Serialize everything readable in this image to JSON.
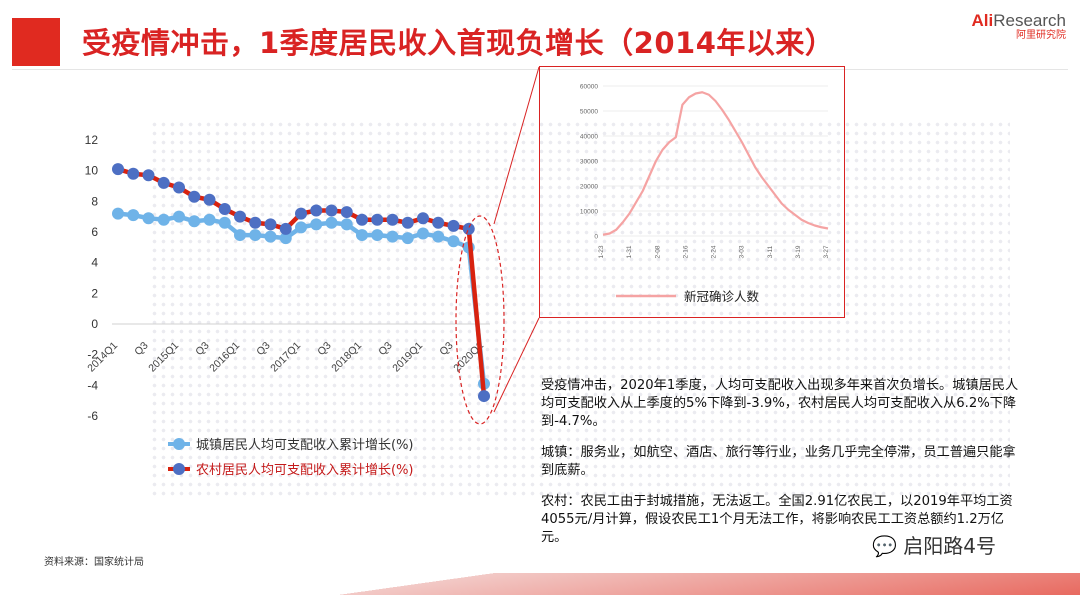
{
  "header": {
    "title": "受疫情冲击，1季度居民收入首现负增长（2014年以来）",
    "logo_main_1": "Ali",
    "logo_main_2": "Research",
    "logo_sub": "阿里研究院"
  },
  "colors": {
    "brand_red": "#e02a20",
    "urban": "#6fb3e8",
    "rural_line": "#d8220f",
    "rural_marker": "#4d6fc3",
    "covid": "#f5a3a3"
  },
  "chart_data": [
    {
      "type": "line",
      "x_tick_labels": [
        "2014Q1",
        "Q3",
        "2015Q1",
        "Q3",
        "2016Q1",
        "Q3",
        "2017Q1",
        "Q3",
        "2018Q1",
        "Q3",
        "2019Q1",
        "Q3",
        "2020Q1"
      ],
      "x": [
        "2014Q1",
        "2014Q2",
        "2014Q3",
        "2014Q4",
        "2015Q1",
        "2015Q2",
        "2015Q3",
        "2015Q4",
        "2016Q1",
        "2016Q2",
        "2016Q3",
        "2016Q4",
        "2017Q1",
        "2017Q2",
        "2017Q3",
        "2017Q4",
        "2018Q1",
        "2018Q2",
        "2018Q3",
        "2018Q4",
        "2019Q1",
        "2019Q2",
        "2019Q3",
        "2019Q4",
        "2020Q1"
      ],
      "y_ticks": [
        "12",
        "10",
        "8",
        "6",
        "4",
        "2",
        "0",
        "-2",
        "-4",
        "-6"
      ],
      "ylim": [
        -6,
        12
      ],
      "series": [
        {
          "name": "城镇居民人均可支配收入累计增长(%)",
          "values": [
            7.2,
            7.1,
            6.9,
            6.8,
            7.0,
            6.7,
            6.8,
            6.6,
            5.8,
            5.8,
            5.7,
            5.6,
            6.3,
            6.5,
            6.6,
            6.5,
            5.8,
            5.8,
            5.7,
            5.6,
            5.9,
            5.7,
            5.4,
            5.0,
            -3.9
          ]
        },
        {
          "name": "农村居民人均可支配收入累计增长(%)",
          "values": [
            10.1,
            9.8,
            9.7,
            9.2,
            8.9,
            8.3,
            8.1,
            7.5,
            7.0,
            6.6,
            6.5,
            6.2,
            7.2,
            7.4,
            7.4,
            7.3,
            6.8,
            6.8,
            6.8,
            6.6,
            6.9,
            6.6,
            6.4,
            6.2,
            -4.7
          ]
        }
      ],
      "grid": false,
      "legend": "bottom-left"
    },
    {
      "type": "line",
      "x_tick_labels": [
        "1-23",
        "1-31",
        "2-08",
        "2-16",
        "2-24",
        "3-03",
        "3-11",
        "3-19",
        "3-27"
      ],
      "y_ticks": [
        "60000",
        "50000",
        "40000",
        "30000",
        "20000",
        "10000",
        "0"
      ],
      "ylim": [
        0,
        60000
      ],
      "x_dates": [
        "1-23",
        "1-25",
        "1-27",
        "1-29",
        "1-31",
        "2-02",
        "2-04",
        "2-06",
        "2-08",
        "2-10",
        "2-12",
        "2-14",
        "2-15",
        "2-16",
        "2-18",
        "2-20",
        "2-22",
        "2-24",
        "2-26",
        "2-28",
        "3-01",
        "3-03",
        "3-05",
        "3-07",
        "3-09",
        "3-11",
        "3-13",
        "3-15",
        "3-17",
        "3-19",
        "3-21",
        "3-23",
        "3-25",
        "3-27",
        "3-29"
      ],
      "series": [
        {
          "name": "新冠确诊人数",
          "values": [
            500,
            1000,
            2500,
            5500,
            9000,
            13500,
            18000,
            24000,
            30000,
            34500,
            37500,
            39500,
            52500,
            55500,
            57000,
            57500,
            56500,
            54000,
            50500,
            46500,
            42000,
            37500,
            32500,
            27500,
            23500,
            20000,
            16500,
            13000,
            10500,
            8500,
            6500,
            5200,
            4200,
            3500,
            3000
          ]
        }
      ],
      "grid": true,
      "legend": "bottom"
    }
  ],
  "notes": {
    "p1": "受疫情冲击，2020年1季度，人均可支配收入出现多年来首次负增长。城镇居民人均可支配收入从上季度的5%下降到-3.9%，农村居民人均可支配收入从6.2%下降到-4.7%。",
    "p2": "城镇：服务业，如航空、酒店、旅行等行业，业务几乎完全停滞，员工普遍只能拿到底薪。",
    "p3": "农村：农民工由于封城措施，无法返工。全国2.91亿农民工，以2019年平均工资4055元/月计算，假设农民工1个月无法工作，将影响农民工工资总额约1.2万亿元。"
  },
  "source": "资料来源：国家统计局",
  "watermark": "启阳路4号"
}
